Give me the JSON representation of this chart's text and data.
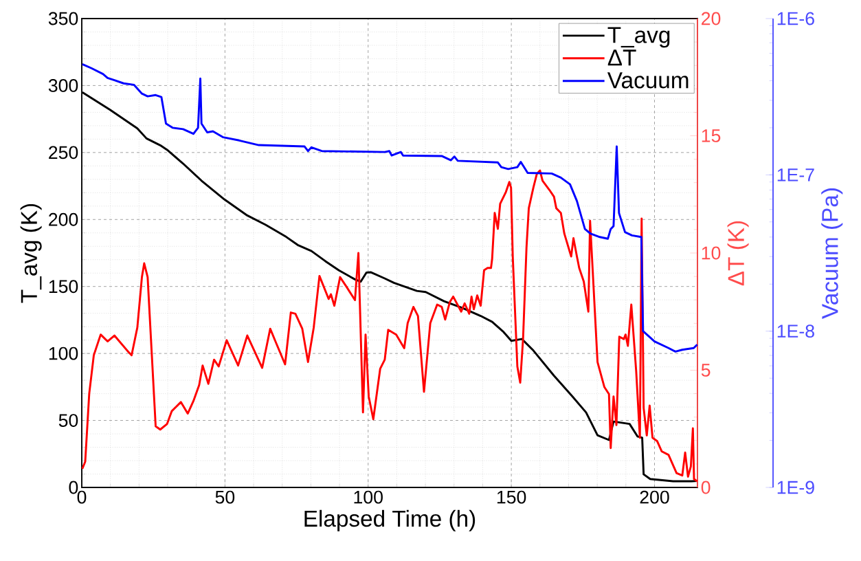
{
  "chart_data": {
    "type": "line",
    "xlabel": "Elapsed Time (h)",
    "ylabel": "T_avg (K)",
    "y2label": "ΔT (K)",
    "y3label": "Vacuum (Pa)",
    "xlim": [
      0,
      215
    ],
    "xticks": [
      0,
      50,
      100,
      150,
      200
    ],
    "ylim": [
      0,
      350
    ],
    "yticks": [
      0,
      50,
      100,
      150,
      200,
      250,
      300,
      350
    ],
    "y2lim": [
      0,
      20
    ],
    "y2ticks": [
      0,
      5,
      10,
      15,
      20
    ],
    "y3lim": [
      1e-09,
      1e-06
    ],
    "y3ticks": [
      {
        "value": 1e-09,
        "label": "1E-9"
      },
      {
        "value": 1e-08,
        "label": "1E-8"
      },
      {
        "value": 1e-07,
        "label": "1E-7"
      },
      {
        "value": 1e-06,
        "label": "1E-6"
      }
    ],
    "log": "y3",
    "grid": true,
    "legend": "top right",
    "series": [
      {
        "name": "T_avg",
        "color": "#000000",
        "axis": "y",
        "x": [
          0.2,
          9.8,
          19.4,
          22.6,
          27.4,
          29.8,
          35.4,
          41.8,
          49.8,
          57.8,
          64.2,
          71.4,
          75.4,
          80.2,
          85,
          89.8,
          95.4,
          97.4,
          99.4,
          101,
          105.8,
          109,
          117,
          120.1,
          126.5,
          132.9,
          139.3,
          143.3,
          147.3,
          150,
          153.7,
          157.7,
          164.9,
          171.3,
          176.1,
          177.7,
          180.1,
          184.1,
          185.7,
          191.3,
          194.1,
          195.7,
          196.2,
          198.5,
          206.5,
          212.9,
          214.9
        ],
        "values": [
          295,
          282,
          268,
          260.5,
          255.4,
          252,
          241.7,
          229,
          215,
          203,
          196,
          187,
          181,
          176.5,
          169,
          162,
          155.3,
          153.6,
          160.4,
          160.6,
          156,
          152.7,
          146.7,
          145.9,
          139,
          134,
          128,
          123.6,
          116,
          109.4,
          110.8,
          102.2,
          83.4,
          68,
          56,
          49.2,
          38.9,
          35.4,
          49.2,
          47.4,
          38,
          37.1,
          9.8,
          6.3,
          4.6,
          4.6,
          4.8
        ]
      },
      {
        "name": "ΔT",
        "color": "#ff0000",
        "axis": "y2",
        "x": [
          0.2,
          1.2,
          2.6,
          4.2,
          6.6,
          9.0,
          11.4,
          16.2,
          17.4,
          19.4,
          21.0,
          21.8,
          23.0,
          25.8,
          27.4,
          29.8,
          31.4,
          34.6,
          37.0,
          39.0,
          41.0,
          42.2,
          44.2,
          46.2,
          47.8,
          50.6,
          54.6,
          57.8,
          63.0,
          65.8,
          67.8,
          71.0,
          73.0,
          74.6,
          77.0,
          79.0,
          81.0,
          83.0,
          86.2,
          87.0,
          88.2,
          90.2,
          92.6,
          95.4,
          96.6,
          98.2,
          99.1,
          100.2,
          101.8,
          104.2,
          105.8,
          107,
          109.8,
          112.6,
          113.8,
          115.8,
          117.4,
          119.5,
          121.7,
          124.1,
          125.7,
          126.9,
          128.5,
          129.7,
          132.5,
          133.7,
          135.3,
          136.1,
          136.9,
          138.1,
          139.3,
          140.5,
          141.7,
          142.9,
          143.3,
          144.2,
          145.3,
          146.1,
          148.1,
          149.3,
          149.9,
          150.5,
          152.1,
          153.1,
          154.1,
          155.3,
          156.1,
          157.7,
          158.9,
          160,
          160.9,
          163.3,
          164.9,
          165.7,
          167.3,
          168.5,
          170.9,
          171.7,
          172.9,
          173.7,
          175.3,
          176.9,
          177.5,
          180.1,
          182.5,
          184.1,
          184.7,
          185.7,
          186.7,
          187.7,
          189.3,
          189.9,
          190.7,
          191.9,
          193.6,
          194.9,
          195.5,
          196.2,
          197.3,
          198.3,
          199.3,
          200.9,
          202.5,
          204.9,
          207.7,
          209.7,
          210.7,
          211.7,
          212.7,
          213.4,
          213.8,
          214.9
        ],
        "values": [
          0.8,
          1.1,
          4.0,
          5.64,
          6.52,
          6.23,
          6.48,
          5.79,
          5.64,
          6.82,
          8.97,
          9.56,
          8.97,
          2.61,
          2.47,
          2.71,
          3.25,
          3.64,
          3.15,
          3.69,
          4.37,
          5.2,
          4.42,
          5.45,
          5.16,
          6.28,
          5.2,
          6.48,
          5.1,
          6.77,
          6.18,
          5.25,
          7.46,
          7.41,
          6.77,
          5.35,
          6.82,
          9.02,
          8.04,
          8.24,
          7.75,
          8.97,
          8.53,
          7.99,
          10.0,
          3.2,
          6.52,
          3.88,
          2.91,
          5.06,
          5.45,
          6.72,
          6.52,
          5.94,
          7.01,
          7.7,
          7.31,
          4.08,
          7.01,
          7.8,
          7.7,
          7.16,
          7.9,
          8.14,
          7.5,
          7.85,
          7.41,
          8.14,
          7.6,
          8.19,
          7.75,
          9.27,
          9.36,
          9.36,
          9.75,
          11.71,
          11.03,
          12.1,
          12.6,
          13.03,
          12.79,
          9.85,
          5.16,
          4.47,
          6.33,
          10.24,
          11.91,
          12.79,
          13.37,
          13.52,
          13.08,
          12.69,
          12.4,
          11.91,
          11.71,
          10.83,
          9.85,
          10.63,
          9.85,
          9.36,
          8.78,
          7.5,
          11.37,
          5.35,
          4.28,
          3.98,
          1.68,
          3.88,
          2.66,
          6.43,
          6.33,
          6.52,
          6.04,
          7.8,
          4.96,
          2.12,
          11.47,
          3.4,
          2.22,
          3.49,
          2.12,
          1.98,
          1.54,
          1.39,
          0.61,
          0.51,
          1.49,
          0.46,
          0.9,
          2.52,
          0.36,
          0.26
        ]
      },
      {
        "name": "Vacuum",
        "color": "#0000ff",
        "axis": "y3",
        "x": [
          0.2,
          3.4,
          7.4,
          9,
          11.4,
          14.6,
          18.2,
          21,
          23,
          25.8,
          27.8,
          29.4,
          31.8,
          35.4,
          39,
          40.6,
          41.4,
          41.8,
          43.8,
          45.8,
          49.4,
          55,
          61.8,
          77.8,
          79,
          80.2,
          83.8,
          105.8,
          107.4,
          108.2,
          111.4,
          112.2,
          125.7,
          128.9,
          130.1,
          131.3,
          145.3,
          146.5,
          148.9,
          152.1,
          153.3,
          155.7,
          164.1,
          167.3,
          170.5,
          172.9,
          175.7,
          177.7,
          180.9,
          183.7,
          184.7,
          185.7,
          186.8,
          187.6,
          189.7,
          192.1,
          195.4,
          196,
          200,
          204.9,
          207.3,
          209.7,
          213.7,
          214.9
        ],
        "values": [
          5.11e-07,
          4.81e-07,
          4.42e-07,
          4.17e-07,
          4.03e-07,
          3.85e-07,
          3.77e-07,
          3.31e-07,
          3.18e-07,
          3.24e-07,
          3.15e-07,
          2.13e-07,
          2e-07,
          1.96e-07,
          1.83e-07,
          2e-07,
          4.13e-07,
          2.13e-07,
          1.87e-07,
          1.9e-07,
          1.74e-07,
          1.66e-07,
          1.55e-07,
          1.52e-07,
          1.42e-07,
          1.5e-07,
          1.42e-07,
          1.4e-07,
          1.42e-07,
          1.33e-07,
          1.4e-07,
          1.33e-07,
          1.32e-07,
          1.24e-07,
          1.31e-07,
          1.23e-07,
          1.2e-07,
          1.12e-07,
          1.09e-07,
          1.12e-07,
          1.21e-07,
          1.03e-07,
          1.02e-07,
          9.6e-08,
          8.7e-08,
          6.8e-08,
          4.5e-08,
          4.2e-08,
          4e-08,
          3.9e-08,
          4.5e-08,
          4.7e-08,
          1.52e-07,
          5.7e-08,
          4.3e-08,
          4.1e-08,
          4e-08,
          1e-08,
          8.6e-09,
          7.8e-09,
          7.4e-09,
          7.6e-09,
          7.8e-09,
          8.2e-09
        ]
      }
    ]
  }
}
